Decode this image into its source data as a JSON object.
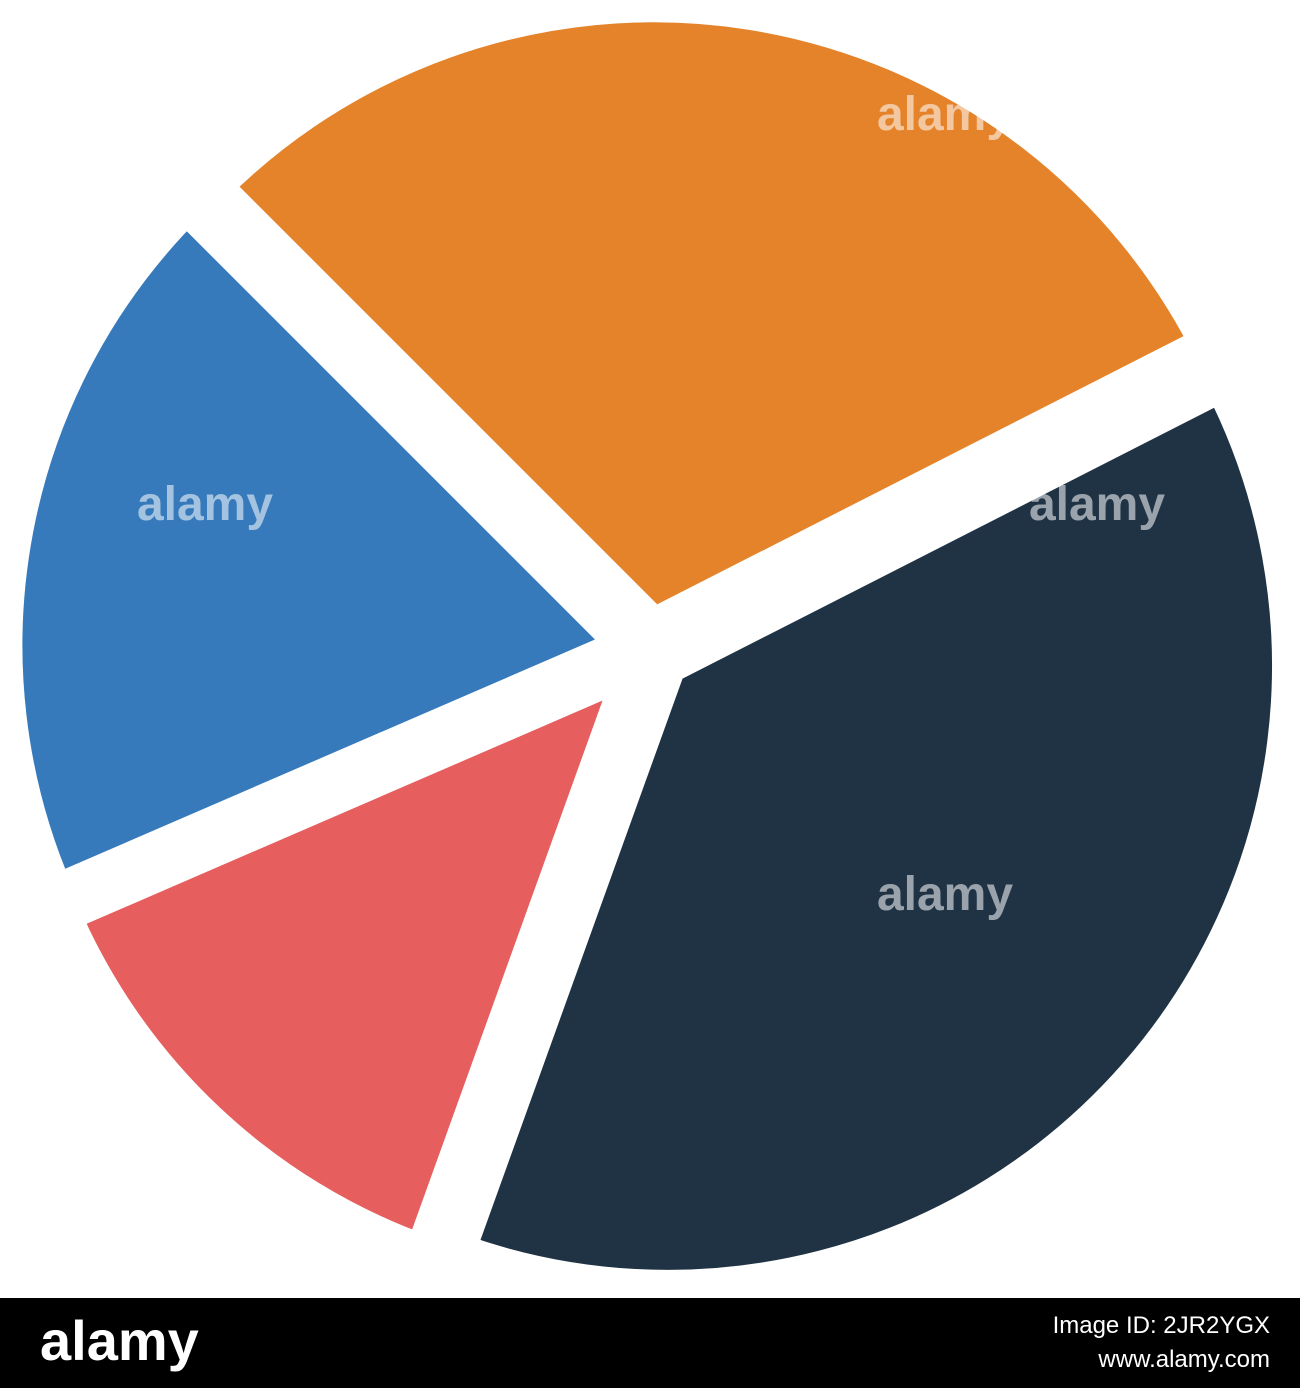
{
  "chart_data": {
    "type": "pie",
    "values": [
      30,
      19,
      13,
      38
    ],
    "colors": [
      "#e5832a",
      "#367abc",
      "#e65e5e",
      "#1f3345"
    ]
  },
  "watermark": {
    "brand": "alamy",
    "image_id": "Image ID: 2JR2YGX",
    "url": "www.alamy.com"
  }
}
